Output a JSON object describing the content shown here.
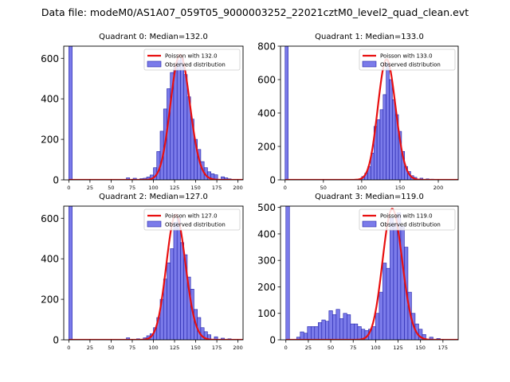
{
  "figure_title": "Data file: modeM0/AS1A07_059T05_9000003252_22021cztM0_level2_quad_clean.evt",
  "colors": {
    "bar_fill": "#7b7bea",
    "bar_edge": "#1f1fa8",
    "poisson_line": "#e81010",
    "axis": "#000000"
  },
  "chart_data": [
    {
      "type": "bar",
      "title": "Quadrant 0: Median=132.0",
      "legend": [
        "Poisson with 132.0",
        "Observed distribution"
      ],
      "legend_position": "top-right",
      "bin_width": 4,
      "xlim": [
        -6,
        206
      ],
      "ylim": [
        0,
        660
      ],
      "xticks": [
        0,
        25,
        50,
        75,
        100,
        125,
        150,
        175,
        200
      ],
      "yticks": [
        0,
        200,
        400,
        600
      ],
      "mean": 132,
      "bins": [
        [
          0,
          660
        ],
        [
          68,
          10
        ],
        [
          76,
          8
        ],
        [
          84,
          6
        ],
        [
          88,
          8
        ],
        [
          92,
          14
        ],
        [
          96,
          24
        ],
        [
          100,
          60
        ],
        [
          104,
          140
        ],
        [
          108,
          240
        ],
        [
          112,
          350
        ],
        [
          116,
          450
        ],
        [
          120,
          530
        ],
        [
          124,
          560
        ],
        [
          128,
          590
        ],
        [
          132,
          600
        ],
        [
          136,
          520
        ],
        [
          140,
          410
        ],
        [
          144,
          300
        ],
        [
          148,
          200
        ],
        [
          152,
          150
        ],
        [
          156,
          90
        ],
        [
          160,
          60
        ],
        [
          164,
          40
        ],
        [
          168,
          30
        ],
        [
          172,
          25
        ],
        [
          180,
          15
        ],
        [
          184,
          10
        ],
        [
          188,
          5
        ]
      ]
    },
    {
      "type": "bar",
      "title": "Quadrant 1: Median=133.0",
      "legend": [
        "Poisson with 133.0",
        "Observed distribution"
      ],
      "legend_position": "top-right",
      "bin_width": 4,
      "xlim": [
        -6,
        226
      ],
      "ylim": [
        0,
        800
      ],
      "xticks": [
        0,
        50,
        100,
        150,
        200
      ],
      "yticks": [
        0,
        200,
        400,
        600,
        800
      ],
      "mean": 133,
      "bins": [
        [
          0,
          800
        ],
        [
          100,
          20
        ],
        [
          104,
          40
        ],
        [
          108,
          80
        ],
        [
          112,
          160
        ],
        [
          116,
          320
        ],
        [
          120,
          360
        ],
        [
          124,
          420
        ],
        [
          128,
          510
        ],
        [
          132,
          700
        ],
        [
          136,
          600
        ],
        [
          140,
          480
        ],
        [
          144,
          390
        ],
        [
          148,
          290
        ],
        [
          152,
          170
        ],
        [
          156,
          80
        ],
        [
          160,
          50
        ],
        [
          164,
          25
        ],
        [
          168,
          15
        ],
        [
          176,
          10
        ],
        [
          184,
          6
        ],
        [
          190,
          4
        ]
      ]
    },
    {
      "type": "bar",
      "title": "Quadrant 2: Median=127.0",
      "legend": [
        "Poisson with 127.0",
        "Observed distribution"
      ],
      "legend_position": "top-right",
      "bin_width": 4,
      "xlim": [
        -6,
        206
      ],
      "ylim": [
        0,
        660
      ],
      "xticks": [
        0,
        25,
        50,
        75,
        100,
        125,
        150,
        175,
        200
      ],
      "yticks": [
        0,
        200,
        400,
        600
      ],
      "mean": 127,
      "bins": [
        [
          0,
          660
        ],
        [
          68,
          10
        ],
        [
          80,
          5
        ],
        [
          88,
          10
        ],
        [
          92,
          20
        ],
        [
          96,
          30
        ],
        [
          100,
          60
        ],
        [
          104,
          110
        ],
        [
          108,
          200
        ],
        [
          112,
          300
        ],
        [
          116,
          380
        ],
        [
          120,
          450
        ],
        [
          124,
          580
        ],
        [
          128,
          600
        ],
        [
          132,
          480
        ],
        [
          136,
          420
        ],
        [
          140,
          310
        ],
        [
          144,
          250
        ],
        [
          148,
          150
        ],
        [
          152,
          110
        ],
        [
          156,
          60
        ],
        [
          160,
          40
        ],
        [
          164,
          25
        ],
        [
          172,
          15
        ],
        [
          180,
          8
        ],
        [
          188,
          5
        ]
      ]
    },
    {
      "type": "bar",
      "title": "Quadrant 3: Median=119.0",
      "legend": [
        "Poisson with 119.0",
        "Observed distribution"
      ],
      "legend_position": "top-right",
      "bin_width": 4,
      "xlim": [
        -6,
        192
      ],
      "ylim": [
        0,
        505
      ],
      "xticks": [
        0,
        25,
        50,
        75,
        100,
        125,
        150,
        175
      ],
      "yticks": [
        0,
        100,
        200,
        300,
        400,
        500
      ],
      "mean": 119,
      "bins": [
        [
          0,
          505
        ],
        [
          12,
          10
        ],
        [
          16,
          30
        ],
        [
          20,
          25
        ],
        [
          24,
          50
        ],
        [
          28,
          50
        ],
        [
          32,
          50
        ],
        [
          36,
          65
        ],
        [
          40,
          75
        ],
        [
          44,
          70
        ],
        [
          48,
          110
        ],
        [
          52,
          95
        ],
        [
          56,
          115
        ],
        [
          60,
          80
        ],
        [
          64,
          100
        ],
        [
          68,
          95
        ],
        [
          72,
          60
        ],
        [
          76,
          60
        ],
        [
          80,
          50
        ],
        [
          84,
          40
        ],
        [
          88,
          35
        ],
        [
          92,
          40
        ],
        [
          96,
          50
        ],
        [
          100,
          100
        ],
        [
          104,
          180
        ],
        [
          108,
          290
        ],
        [
          112,
          270
        ],
        [
          116,
          460
        ],
        [
          120,
          440
        ],
        [
          124,
          480
        ],
        [
          128,
          430
        ],
        [
          132,
          350
        ],
        [
          136,
          180
        ],
        [
          140,
          100
        ],
        [
          144,
          60
        ],
        [
          148,
          40
        ],
        [
          152,
          20
        ],
        [
          160,
          10
        ],
        [
          168,
          5
        ]
      ]
    }
  ]
}
